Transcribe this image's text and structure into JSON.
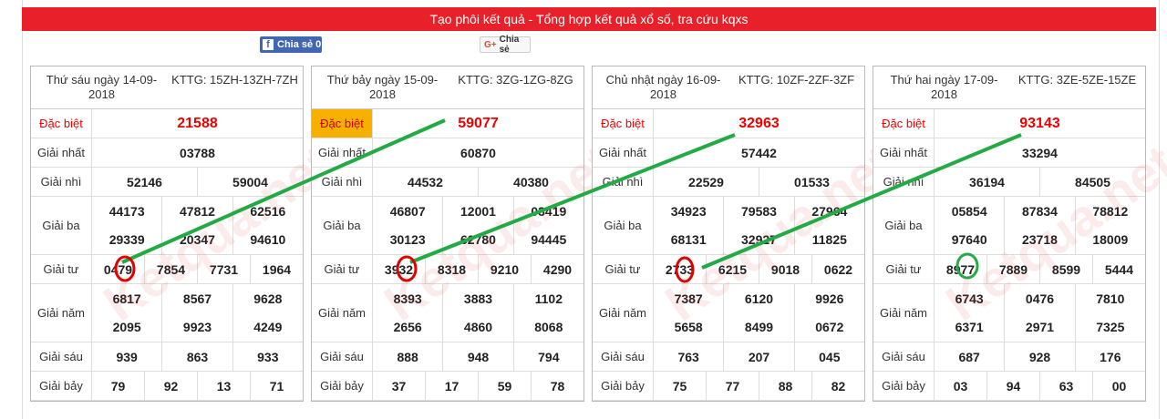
{
  "header": {
    "title": "Tạo phôi kết quả - Tổng hợp kết quả xổ số, tra cứu kqxs"
  },
  "share": {
    "facebook_label": "Chia sẻ 0",
    "google_label": "Chia sẻ"
  },
  "colors": {
    "brand_red": "#e8202a",
    "prize_red": "#e00000",
    "highlight": "#f5b000",
    "line_green": "#22aa44",
    "circle_red": "#e00000",
    "circle_green": "#22aa44"
  },
  "watermark": "Ketqua.net",
  "boards": [
    {
      "date": "Thứ sáu ngày 14-09-2018",
      "kttg": "KTTG: 15ZH-13ZH-7ZH",
      "labels": {
        "db": "Đặc biệt",
        "g1": "Giải nhất",
        "g2": "Giải nhì",
        "g3": "Giải ba",
        "g4": "Giải tư",
        "g5": "Giải năm",
        "g6": "Giải sáu",
        "g7": "Giải bảy"
      },
      "db": "21588",
      "g1": "03788",
      "g2": [
        "52146",
        "59004"
      ],
      "g3a": [
        "44173",
        "47812",
        "62516"
      ],
      "g3b": [
        "29339",
        "20347",
        "94610"
      ],
      "g4": [
        "0479",
        "7854",
        "7731",
        "1964"
      ],
      "g5a": [
        "6817",
        "8567",
        "9628"
      ],
      "g5b": [
        "2095",
        "9923",
        "4249"
      ],
      "g6": [
        "939",
        "863",
        "933"
      ],
      "g7": [
        "79",
        "92",
        "13",
        "71"
      ]
    },
    {
      "date": "Thứ bảy ngày 15-09-2018",
      "kttg": "KTTG: 3ZG-1ZG-8ZG",
      "labels": {
        "db": "Đặc biệt",
        "g1": "Giải nhất",
        "g2": "Giải nhì",
        "g3": "Giải ba",
        "g4": "Giải tư",
        "g5": "Giải năm",
        "g6": "Giải sáu",
        "g7": "Giải bảy"
      },
      "db": "59077",
      "g1": "60870",
      "g2": [
        "44532",
        "40380"
      ],
      "g3a": [
        "46807",
        "12001",
        "03419"
      ],
      "g3b": [
        "30123",
        "62780",
        "94445"
      ],
      "g4": [
        "3932",
        "8318",
        "9210",
        "4290"
      ],
      "g5a": [
        "8393",
        "3883",
        "1102"
      ],
      "g5b": [
        "2656",
        "4860",
        "8068"
      ],
      "g6": [
        "888",
        "948",
        "794"
      ],
      "g7": [
        "37",
        "17",
        "59",
        "78"
      ]
    },
    {
      "date": "Chủ nhật ngày 16-09-2018",
      "kttg": "KTTG: 10ZF-2ZF-3ZF",
      "labels": {
        "db": "Đặc biệt",
        "g1": "Giải nhất",
        "g2": "Giải nhì",
        "g3": "Giải ba",
        "g4": "Giải tư",
        "g5": "Giải năm",
        "g6": "Giải sáu",
        "g7": "Giải bảy"
      },
      "db": "32963",
      "g1": "57442",
      "g2": [
        "22529",
        "01533"
      ],
      "g3a": [
        "34923",
        "79583",
        "27964"
      ],
      "g3b": [
        "68131",
        "32927",
        "11825"
      ],
      "g4": [
        "2733",
        "6215",
        "9018",
        "0622"
      ],
      "g5a": [
        "7387",
        "6120",
        "9926"
      ],
      "g5b": [
        "5658",
        "8499",
        "0672"
      ],
      "g6": [
        "763",
        "207",
        "045"
      ],
      "g7": [
        "75",
        "77",
        "88",
        "82"
      ]
    },
    {
      "date": "Thứ hai ngày 17-09-2018",
      "kttg": "KTTG: 3ZE-5ZE-15ZE",
      "labels": {
        "db": "Đặc biệt",
        "g1": "Giải nhất",
        "g2": "Giải nhì",
        "g3": "Giải ba",
        "g4": "Giải tư",
        "g5": "Giải năm",
        "g6": "Giải sáu",
        "g7": "Giải bảy"
      },
      "db": "93143",
      "g1": "33294",
      "g2": [
        "36194",
        "84505"
      ],
      "g3a": [
        "05854",
        "87834",
        "78812"
      ],
      "g3b": [
        "97640",
        "23718",
        "18009"
      ],
      "g4": [
        "8977",
        "7889",
        "8599",
        "5444"
      ],
      "g5a": [
        "6743",
        "0476",
        "7810"
      ],
      "g5b": [
        "6371",
        "2971",
        "7325"
      ],
      "g6": [
        "687",
        "928",
        "176"
      ],
      "g7": [
        "03",
        "94",
        "63",
        "00"
      ]
    }
  ]
}
